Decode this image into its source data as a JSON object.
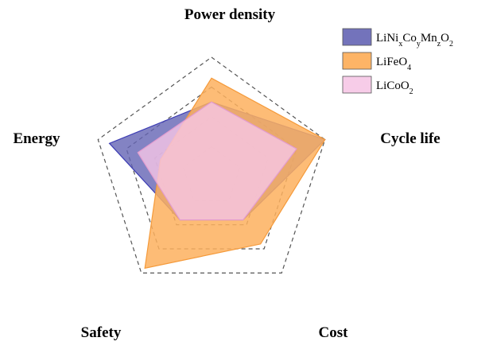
{
  "chart_data": {
    "type": "radar",
    "title": "",
    "axes": [
      "Power density",
      "Cycle life",
      "Cost",
      "Safety",
      "Energy"
    ],
    "range": [
      0,
      4
    ],
    "grid_levels": [
      1,
      2,
      3,
      4
    ],
    "grid_style": "dashed",
    "legend_position": "top-right",
    "series": [
      {
        "name": "LiNixCoyMn zO2",
        "label_parts": [
          {
            "t": "LiNi"
          },
          {
            "t": "x",
            "sub": true
          },
          {
            "t": "Co"
          },
          {
            "t": "y",
            "sub": true
          },
          {
            "t": "Mn"
          },
          {
            "t": "z",
            "sub": true
          },
          {
            "t": "O"
          },
          {
            "t": "2",
            "sub": true
          }
        ],
        "color": "#6464b4",
        "edge_color": "#3c3cb4",
        "opacity": 0.8,
        "values": [
          2.5,
          4.0,
          1.8,
          1.8,
          3.6
        ]
      },
      {
        "name": "LiFeO4",
        "label_parts": [
          {
            "t": "LiFeO"
          },
          {
            "t": "4",
            "sub": true
          }
        ],
        "color": "#fdb05e",
        "edge_color": "#f59a3a",
        "opacity": 0.85,
        "values": [
          3.3,
          4.0,
          2.8,
          3.8,
          1.8
        ]
      },
      {
        "name": "LiCoO2",
        "label_parts": [
          {
            "t": "LiCoO"
          },
          {
            "t": "2",
            "sub": true
          }
        ],
        "color": "#f6c6e6",
        "edge_color": "#e39ccf",
        "opacity": 0.8,
        "values": [
          2.5,
          3.0,
          1.8,
          1.8,
          2.6
        ]
      }
    ]
  }
}
